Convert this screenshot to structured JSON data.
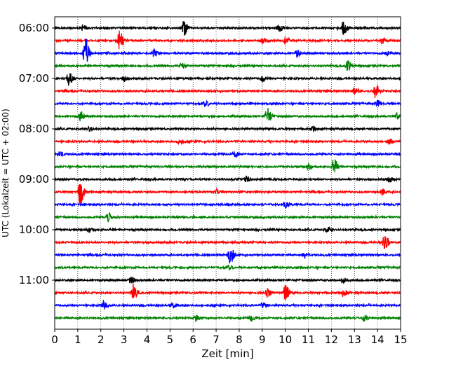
{
  "chart_data": {
    "type": "line",
    "title": "",
    "xlabel": "Zeit  [min]",
    "ylabel": "UTC (Lokalzeit = UTC + 02:00)",
    "xlim": [
      0,
      15
    ],
    "x_ticks": [
      0,
      1,
      2,
      3,
      4,
      5,
      6,
      7,
      8,
      9,
      10,
      11,
      12,
      13,
      14,
      15
    ],
    "x_tick_labels": [
      "0",
      "1",
      "2",
      "3",
      "4",
      "5",
      "6",
      "7",
      "8",
      "9",
      "10",
      "11",
      "12",
      "13",
      "14",
      "15"
    ],
    "y_tick_labels": [
      "06:00",
      "07:00",
      "08:00",
      "09:00",
      "10:00",
      "11:00"
    ],
    "y_tick_rows": [
      0,
      4,
      8,
      12,
      16,
      20
    ],
    "row_interval_min": 15,
    "grid": "vertical",
    "colors_cycle": [
      "#000000",
      "#ff0000",
      "#0000ff",
      "#008000"
    ],
    "series": [
      {
        "start": "06:00",
        "color": "#000000",
        "events": [
          {
            "t": 1.2,
            "a": 0.35
          },
          {
            "t": 5.6,
            "a": 0.9
          },
          {
            "t": 9.7,
            "a": 0.4
          },
          {
            "t": 12.5,
            "a": 0.9
          }
        ]
      },
      {
        "start": "06:15",
        "color": "#ff0000",
        "events": [
          {
            "t": 2.8,
            "a": 1.1
          },
          {
            "t": 9.0,
            "a": 0.3
          },
          {
            "t": 10.0,
            "a": 0.45
          },
          {
            "t": 14.2,
            "a": 0.35
          }
        ]
      },
      {
        "start": "06:30",
        "color": "#0000ff",
        "events": [
          {
            "t": 1.3,
            "a": 2.0
          },
          {
            "t": 4.3,
            "a": 0.4
          },
          {
            "t": 10.5,
            "a": 0.45
          },
          {
            "t": 14.4,
            "a": 0.3
          }
        ]
      },
      {
        "start": "06:45",
        "color": "#008000",
        "events": [
          {
            "t": 5.5,
            "a": 0.3
          },
          {
            "t": 12.7,
            "a": 0.6
          }
        ]
      },
      {
        "start": "07:00",
        "color": "#000000",
        "events": [
          {
            "t": 0.6,
            "a": 0.95
          },
          {
            "t": 3.0,
            "a": 0.3
          },
          {
            "t": 9.0,
            "a": 0.35
          }
        ]
      },
      {
        "start": "07:15",
        "color": "#ff0000",
        "events": [
          {
            "t": 13.0,
            "a": 0.45
          },
          {
            "t": 13.9,
            "a": 0.8
          }
        ]
      },
      {
        "start": "07:30",
        "color": "#0000ff",
        "events": [
          {
            "t": 6.5,
            "a": 0.3
          },
          {
            "t": 14.0,
            "a": 0.35
          }
        ]
      },
      {
        "start": "07:45",
        "color": "#008000",
        "events": [
          {
            "t": 1.1,
            "a": 0.6
          },
          {
            "t": 9.2,
            "a": 1.0
          },
          {
            "t": 14.8,
            "a": 0.4
          }
        ]
      },
      {
        "start": "08:00",
        "color": "#000000",
        "events": [
          {
            "t": 1.5,
            "a": 0.3
          },
          {
            "t": 11.2,
            "a": 0.3
          }
        ]
      },
      {
        "start": "08:15",
        "color": "#ff0000",
        "events": [
          {
            "t": 5.4,
            "a": 0.45
          },
          {
            "t": 14.5,
            "a": 0.3
          }
        ]
      },
      {
        "start": "08:30",
        "color": "#0000ff",
        "events": [
          {
            "t": 0.2,
            "a": 0.3
          },
          {
            "t": 7.8,
            "a": 0.3
          }
        ]
      },
      {
        "start": "08:45",
        "color": "#008000",
        "events": [
          {
            "t": 11.0,
            "a": 0.35
          },
          {
            "t": 12.1,
            "a": 0.9
          }
        ]
      },
      {
        "start": "09:00",
        "color": "#000000",
        "events": [
          {
            "t": 8.3,
            "a": 0.3
          },
          {
            "t": 14.5,
            "a": 0.35
          }
        ]
      },
      {
        "start": "09:15",
        "color": "#ff0000",
        "events": [
          {
            "t": 1.1,
            "a": 1.7
          },
          {
            "t": 7.0,
            "a": 0.3
          },
          {
            "t": 14.2,
            "a": 0.4
          }
        ]
      },
      {
        "start": "09:30",
        "color": "#0000ff",
        "events": [
          {
            "t": 10.0,
            "a": 0.35
          }
        ]
      },
      {
        "start": "09:45",
        "color": "#008000",
        "events": [
          {
            "t": 2.3,
            "a": 0.5
          }
        ]
      },
      {
        "start": "10:00",
        "color": "#000000",
        "events": [
          {
            "t": 1.5,
            "a": 0.3
          },
          {
            "t": 11.8,
            "a": 0.3
          }
        ]
      },
      {
        "start": "10:15",
        "color": "#ff0000",
        "events": [
          {
            "t": 14.3,
            "a": 1.0
          }
        ]
      },
      {
        "start": "10:30",
        "color": "#0000ff",
        "events": [
          {
            "t": 7.6,
            "a": 1.0
          },
          {
            "t": 10.8,
            "a": 0.3
          }
        ]
      },
      {
        "start": "10:45",
        "color": "#008000",
        "events": [
          {
            "t": 7.5,
            "a": 0.3
          }
        ]
      },
      {
        "start": "11:00",
        "color": "#000000",
        "events": [
          {
            "t": 3.3,
            "a": 0.35
          },
          {
            "t": 12.5,
            "a": 0.35
          }
        ]
      },
      {
        "start": "11:15",
        "color": "#ff0000",
        "events": [
          {
            "t": 3.4,
            "a": 0.9
          },
          {
            "t": 9.2,
            "a": 0.5
          },
          {
            "t": 10.0,
            "a": 0.9
          },
          {
            "t": 12.5,
            "a": 0.5
          }
        ]
      },
      {
        "start": "11:30",
        "color": "#0000ff",
        "events": [
          {
            "t": 2.1,
            "a": 0.45
          },
          {
            "t": 5.1,
            "a": 0.3
          },
          {
            "t": 9.0,
            "a": 0.3
          }
        ]
      },
      {
        "start": "11:45",
        "color": "#008000",
        "events": [
          {
            "t": 6.1,
            "a": 0.3
          },
          {
            "t": 8.5,
            "a": 0.3
          },
          {
            "t": 13.4,
            "a": 0.35
          }
        ]
      }
    ]
  }
}
